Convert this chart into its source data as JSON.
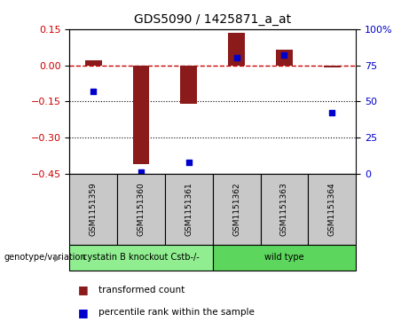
{
  "title": "GDS5090 / 1425871_a_at",
  "samples": [
    "GSM1151359",
    "GSM1151360",
    "GSM1151361",
    "GSM1151362",
    "GSM1151363",
    "GSM1151364"
  ],
  "transformed_count": [
    0.02,
    -0.41,
    -0.16,
    0.135,
    0.065,
    -0.01
  ],
  "percentile_rank": [
    57,
    1,
    8,
    80,
    82,
    42
  ],
  "ylim_left": [
    -0.45,
    0.15
  ],
  "ylim_right": [
    0,
    100
  ],
  "yticks_left": [
    0.15,
    0,
    -0.15,
    -0.3,
    -0.45
  ],
  "yticks_right": [
    100,
    75,
    50,
    25,
    0
  ],
  "dotted_lines": [
    -0.15,
    -0.3
  ],
  "bar_color": "#8B1A1A",
  "point_color": "#0000CD",
  "dashed_line_color": "#CC0000",
  "groups": [
    {
      "label": "cystatin B knockout Cstb-/-",
      "samples": [
        0,
        1,
        2
      ],
      "color": "#90EE90"
    },
    {
      "label": "wild type",
      "samples": [
        3,
        4,
        5
      ],
      "color": "#5CD65C"
    }
  ],
  "group_row_label": "genotype/variation",
  "legend_bar_label": "transformed count",
  "legend_point_label": "percentile rank within the sample",
  "bar_width": 0.35,
  "fig_width": 4.61,
  "fig_height": 3.63,
  "dpi": 100,
  "left_tick_color": "#CC0000",
  "right_tick_color": "#0000CD",
  "sample_box_color": "#C8C8C8",
  "group1_color": "#90EE90",
  "group2_color": "#5CD65C"
}
